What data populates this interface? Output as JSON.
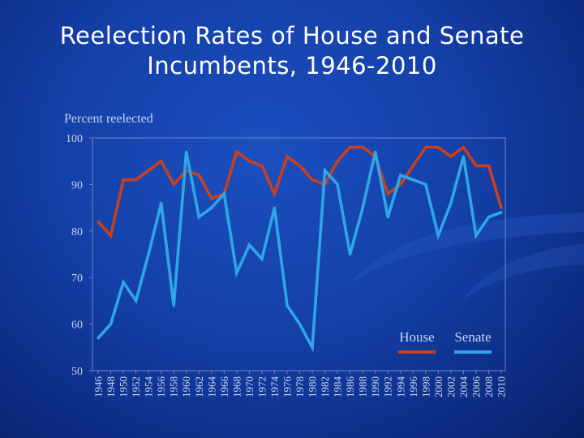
{
  "slide": {
    "title_line1": "Reelection Rates of House and Senate",
    "title_line2": "Incumbents, 1946-2010"
  },
  "colors": {
    "house": "#c8401e",
    "senate": "#2ea6e8",
    "axis_text": "#c8d4f0"
  },
  "chart_data": {
    "type": "line",
    "title": "",
    "ylabel": "Percent reelected",
    "xlabel": "",
    "ylim": [
      50,
      100
    ],
    "yticks": [
      50,
      60,
      70,
      80,
      90,
      100
    ],
    "x": [
      "1946",
      "1948",
      "1950",
      "1952",
      "1954",
      "1956",
      "1958",
      "1960",
      "1962",
      "1964",
      "1966",
      "1968",
      "1970",
      "1972",
      "1974",
      "1976",
      "1978",
      "1980",
      "1982",
      "1984",
      "1986",
      "1988",
      "1990",
      "1992",
      "1994",
      "1996",
      "1998",
      "2000",
      "2002",
      "2004",
      "2006",
      "2008",
      "2010"
    ],
    "legend_position": "bottom-right",
    "series": [
      {
        "name": "House",
        "values": [
          82,
          79,
          91,
          91,
          93,
          95,
          90,
          93,
          92,
          87,
          88,
          97,
          95,
          94,
          88,
          96,
          94,
          91,
          90,
          95,
          98,
          98,
          96,
          88,
          90,
          94,
          98,
          98,
          96,
          98,
          94,
          94,
          85
        ]
      },
      {
        "name": "Senate",
        "values": [
          57,
          60,
          69,
          65,
          75,
          86,
          64,
          97,
          83,
          85,
          88,
          71,
          77,
          74,
          85,
          64,
          60,
          55,
          93,
          90,
          75,
          85,
          97,
          83,
          92,
          91,
          90,
          79,
          86,
          96,
          79,
          83,
          84
        ]
      }
    ]
  }
}
